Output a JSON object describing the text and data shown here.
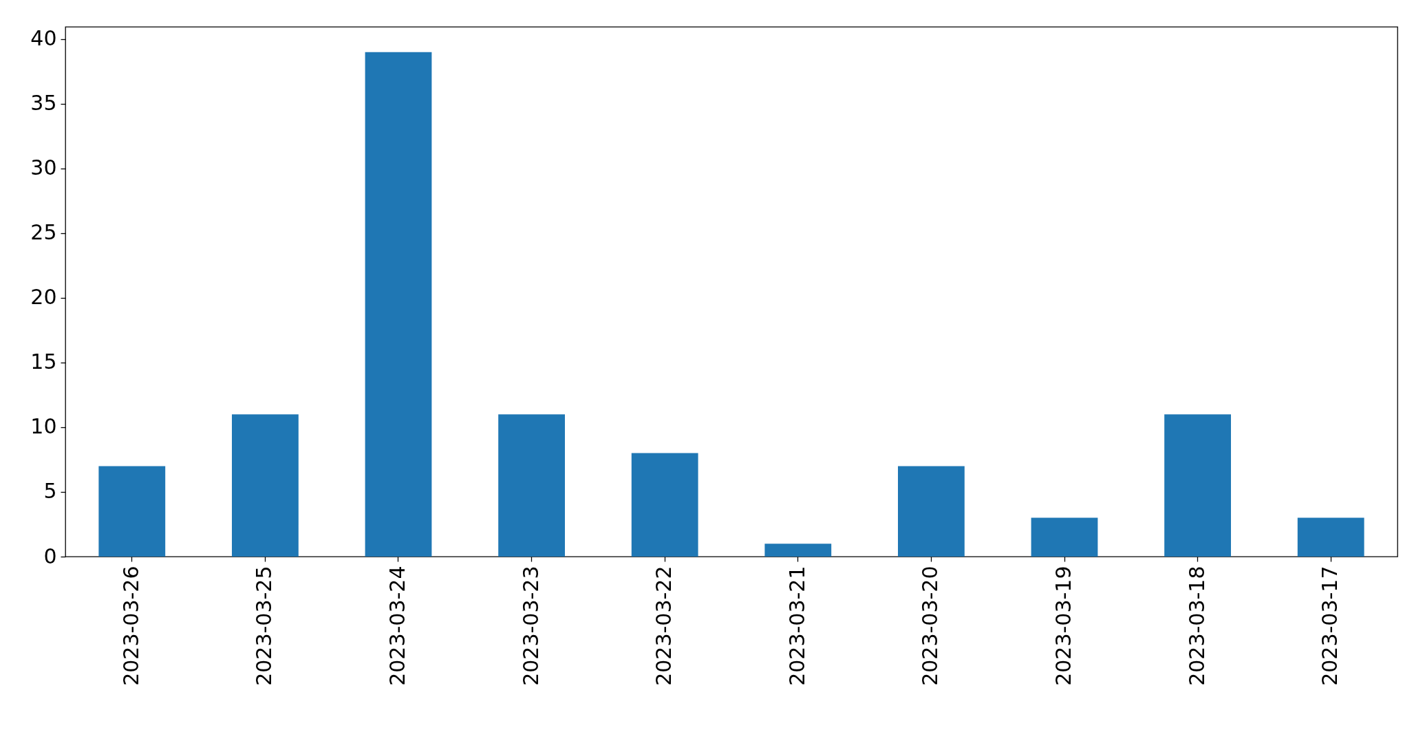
{
  "chart_data": {
    "type": "bar",
    "categories": [
      "2023-03-26",
      "2023-03-25",
      "2023-03-24",
      "2023-03-23",
      "2023-03-22",
      "2023-03-21",
      "2023-03-20",
      "2023-03-19",
      "2023-03-18",
      "2023-03-17"
    ],
    "values": [
      7,
      11,
      39,
      11,
      8,
      1,
      7,
      3,
      11,
      3
    ],
    "color": "#1f77b4",
    "ylim": [
      0,
      40.95
    ],
    "yticks": [
      0,
      5,
      10,
      15,
      20,
      25,
      30,
      35,
      40
    ]
  }
}
